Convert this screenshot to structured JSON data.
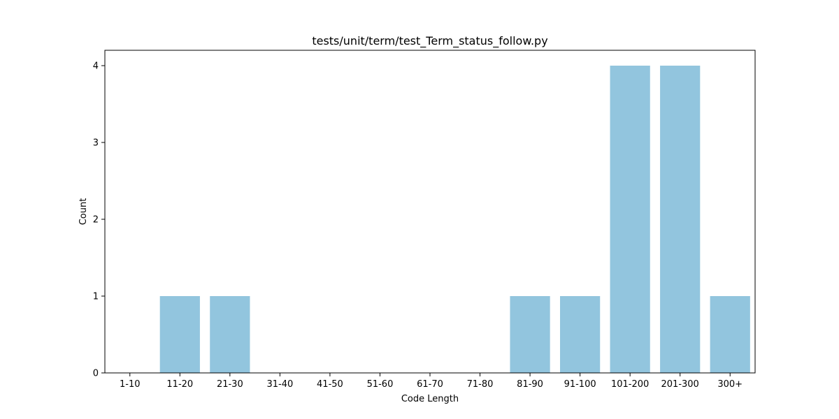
{
  "chart_data": {
    "type": "bar",
    "title": "tests/unit/term/test_Term_status_follow.py",
    "xlabel": "Code Length",
    "ylabel": "Count",
    "categories": [
      "1-10",
      "11-20",
      "21-30",
      "31-40",
      "41-50",
      "51-60",
      "61-70",
      "71-80",
      "81-90",
      "91-100",
      "101-200",
      "201-300",
      "300+"
    ],
    "values": [
      0,
      1,
      1,
      0,
      0,
      0,
      0,
      0,
      1,
      1,
      4,
      4,
      1
    ],
    "ylim": [
      0,
      4.2
    ],
    "yticks": [
      0,
      1,
      2,
      3,
      4
    ],
    "bar_color": "#92c5de",
    "grid": false,
    "legend": "none"
  }
}
